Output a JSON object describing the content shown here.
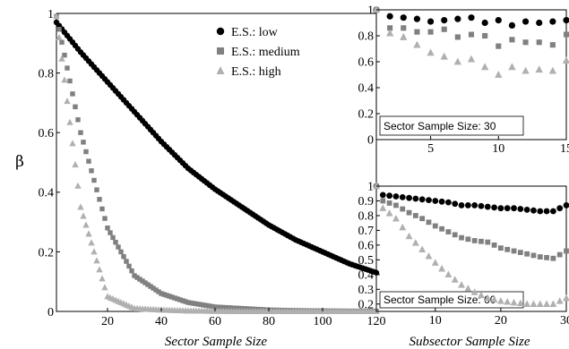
{
  "chart_data": [
    {
      "type": "scatter",
      "xlabel": "Sector Sample Size",
      "ylabel": "β",
      "xlim": [
        1,
        120
      ],
      "ylim": [
        0,
        1
      ],
      "xticks": [
        20,
        40,
        60,
        80,
        100,
        120
      ],
      "yticks": [
        0,
        0.2,
        0.4,
        0.6,
        0.8,
        1
      ],
      "ytick_labels": [
        "0",
        "0.2",
        "0.4",
        "0.6",
        "0.8",
        "1"
      ],
      "legend": "top-right",
      "x": [
        1,
        10,
        20,
        30,
        40,
        50,
        60,
        70,
        80,
        90,
        100,
        110,
        120
      ],
      "series": [
        {
          "name": "E.S.: low",
          "marker": "circle",
          "color": "#000000",
          "values": [
            0.97,
            0.87,
            0.77,
            0.67,
            0.57,
            0.48,
            0.41,
            0.35,
            0.29,
            0.24,
            0.2,
            0.16,
            0.13
          ]
        },
        {
          "name": "E.S.: medium",
          "marker": "square",
          "color": "#808080",
          "values": [
            0.99,
            0.6,
            0.28,
            0.12,
            0.06,
            0.03,
            0.015,
            0.01,
            0.005,
            0.003,
            0.002,
            0.001,
            0.001
          ]
        },
        {
          "name": "E.S.: high",
          "marker": "triangle",
          "color": "#b0b0b0",
          "values": [
            0.99,
            0.35,
            0.05,
            0.01,
            0.005,
            0.002,
            0.001,
            0.0,
            0.0,
            0.0,
            0.0,
            0.0,
            0.0
          ]
        }
      ]
    },
    {
      "type": "scatter",
      "annotation": "Sector Sample Size: 30",
      "xlim": [
        1,
        15
      ],
      "ylim": [
        0,
        1
      ],
      "xticks": [
        5,
        10,
        15
      ],
      "yticks": [
        0,
        0.2,
        0.4,
        0.6,
        0.8,
        1
      ],
      "ytick_labels": [
        "0",
        "0.2",
        "0.4",
        "0.6",
        "0.8",
        "1"
      ],
      "x": [
        1,
        2,
        3,
        4,
        5,
        6,
        7,
        8,
        9,
        10,
        11,
        12,
        13,
        14,
        15
      ],
      "series": [
        {
          "name": "E.S.: low",
          "marker": "circle",
          "color": "#000000",
          "values": [
            1.0,
            0.95,
            0.94,
            0.93,
            0.91,
            0.92,
            0.93,
            0.94,
            0.9,
            0.92,
            0.88,
            0.91,
            0.9,
            0.91,
            0.92
          ]
        },
        {
          "name": "E.S.: medium",
          "marker": "square",
          "color": "#808080",
          "values": [
            1.0,
            0.86,
            0.86,
            0.83,
            0.83,
            0.85,
            0.79,
            0.81,
            0.8,
            0.72,
            0.77,
            0.75,
            0.75,
            0.73,
            0.81
          ]
        },
        {
          "name": "E.S.: high",
          "marker": "triangle",
          "color": "#b0b0b0",
          "values": [
            1.0,
            0.82,
            0.79,
            0.73,
            0.67,
            0.64,
            0.6,
            0.62,
            0.56,
            0.5,
            0.56,
            0.53,
            0.54,
            0.53,
            0.61
          ]
        }
      ]
    },
    {
      "type": "scatter",
      "xlabel": "Subsector Sample Size",
      "annotation": "Sector Sample Size: 60",
      "xlim": [
        1,
        30
      ],
      "ylim": [
        0,
        1
      ],
      "xticks": [
        10,
        20,
        30
      ],
      "yticks": [
        0.2,
        0.3,
        0.4,
        0.5,
        0.6,
        0.7,
        0.8,
        0.9,
        1
      ],
      "ytick_labels": [
        "0.2",
        "0.3",
        "0.4",
        "0.5",
        "0.6",
        "0.7",
        "0.8",
        "0.9",
        "1"
      ],
      "x": [
        1,
        2,
        4,
        6,
        8,
        10,
        12,
        14,
        16,
        18,
        20,
        22,
        24,
        26,
        28,
        30
      ],
      "series": [
        {
          "name": "E.S.: low",
          "marker": "circle",
          "color": "#000000",
          "values": [
            1.0,
            0.94,
            0.93,
            0.92,
            0.91,
            0.9,
            0.89,
            0.87,
            0.87,
            0.86,
            0.85,
            0.85,
            0.84,
            0.83,
            0.83,
            0.87
          ]
        },
        {
          "name": "E.S.: medium",
          "marker": "square",
          "color": "#808080",
          "values": [
            1.0,
            0.9,
            0.87,
            0.82,
            0.78,
            0.73,
            0.69,
            0.65,
            0.63,
            0.62,
            0.58,
            0.56,
            0.54,
            0.52,
            0.51,
            0.56
          ]
        },
        {
          "name": "E.S.: high",
          "marker": "triangle",
          "color": "#b0b0b0",
          "values": [
            1.0,
            0.85,
            0.78,
            0.66,
            0.57,
            0.48,
            0.4,
            0.33,
            0.28,
            0.24,
            0.22,
            0.21,
            0.2,
            0.2,
            0.2,
            0.24
          ]
        }
      ]
    }
  ]
}
